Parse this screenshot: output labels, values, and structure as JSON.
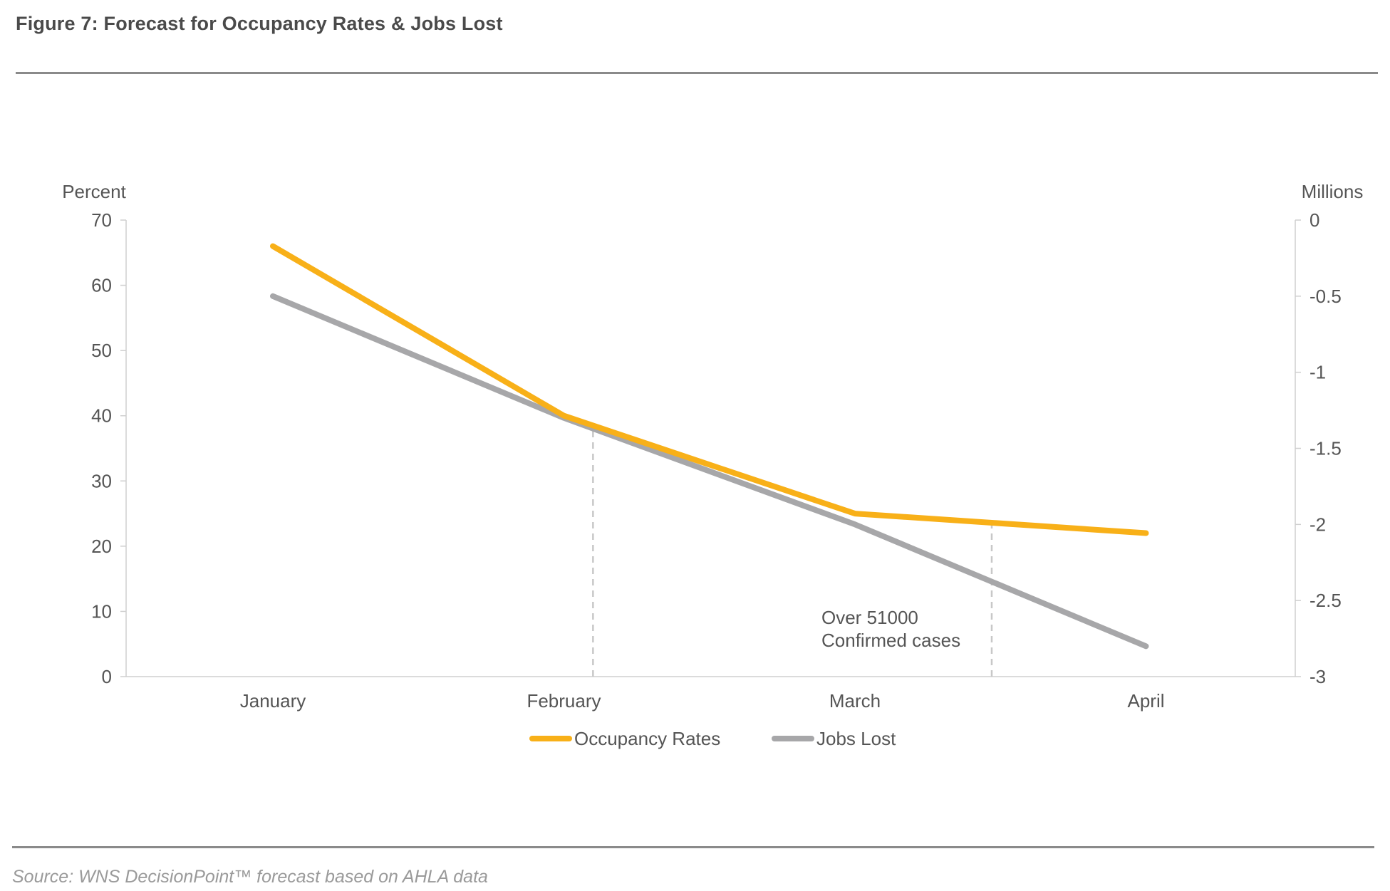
{
  "figure": {
    "title": "Figure 7: Forecast for Occupancy Rates & Jobs Lost",
    "source": "Source: WNS DecisionPoint™ forecast based on AHLA data"
  },
  "chart_data": {
    "type": "line",
    "categories": [
      "January",
      "February",
      "March",
      "April"
    ],
    "series": [
      {
        "name": "Occupancy Rates",
        "axis": "left",
        "color": "#F8B018",
        "values": [
          66,
          40,
          25,
          22
        ]
      },
      {
        "name": "Jobs Lost",
        "axis": "right",
        "color": "#A7A7A9",
        "values": [
          -0.5,
          -1.3,
          -2.0,
          -2.8
        ]
      }
    ],
    "y_left": {
      "label": "Percent",
      "ylim": [
        0,
        70
      ],
      "ticks": [
        0,
        10,
        20,
        30,
        40,
        50,
        60,
        70
      ],
      "tick_labels": [
        "0",
        "10",
        "20",
        "30",
        "40",
        "50",
        "60",
        "70"
      ]
    },
    "y_right": {
      "label": "Millions",
      "ylim": [
        -3,
        0
      ],
      "ticks": [
        0,
        -0.5,
        -1,
        -1.5,
        -2,
        -2.5,
        -3
      ],
      "tick_labels": [
        "0",
        "-0.5",
        "-1",
        "-1.5",
        "-2",
        "-2.5",
        "-3"
      ]
    },
    "reference_lines": [
      {
        "x_category_position": 1.1,
        "style": "dashed",
        "color": "#C8C8C8"
      },
      {
        "x_category_position": 2.47,
        "style": "dashed",
        "color": "#C8C8C8"
      }
    ],
    "annotations": [
      {
        "lines": [
          "Over 51000",
          "Confirmed cases"
        ]
      }
    ],
    "grid": false,
    "legend": "bottom-center"
  }
}
